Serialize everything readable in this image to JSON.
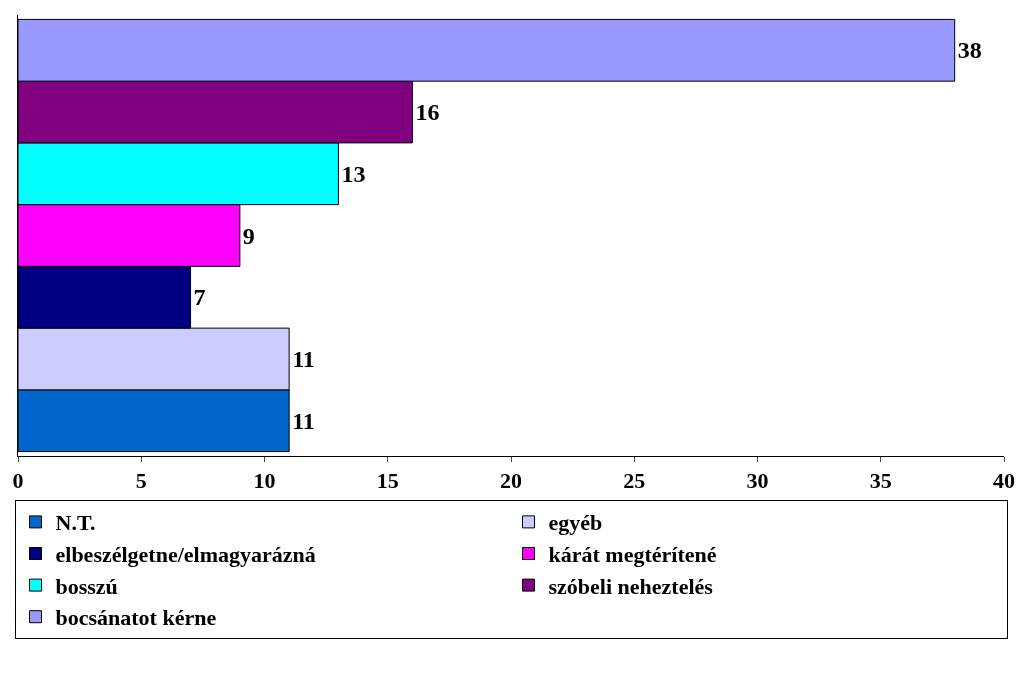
{
  "chart_data": {
    "type": "bar",
    "orientation": "horizontal",
    "categories": [
      null
    ],
    "series": [
      {
        "name": "N.T.",
        "color": "#0066cc",
        "values": [
          11
        ]
      },
      {
        "name": "egyéb",
        "color": "#ccccff",
        "values": [
          11
        ]
      },
      {
        "name": "elbeszélgetne/elmagyarázná",
        "color": "#000080",
        "values": [
          7
        ]
      },
      {
        "name": "kárát megtérítené",
        "color": "#ff00ff",
        "values": [
          9
        ]
      },
      {
        "name": "bosszú",
        "color": "#00ffff",
        "values": [
          13
        ]
      },
      {
        "name": "szóbeli neheztelés",
        "color": "#800080",
        "values": [
          16
        ]
      },
      {
        "name": "bocsánatot kérne",
        "color": "#9999ff",
        "values": [
          38
        ]
      }
    ],
    "xlim": [
      0,
      40
    ],
    "xticks": [
      0,
      5,
      10,
      15,
      20,
      25,
      30,
      35,
      40
    ],
    "data_labels": true,
    "legend": "bottom",
    "tick_labels": "x"
  }
}
